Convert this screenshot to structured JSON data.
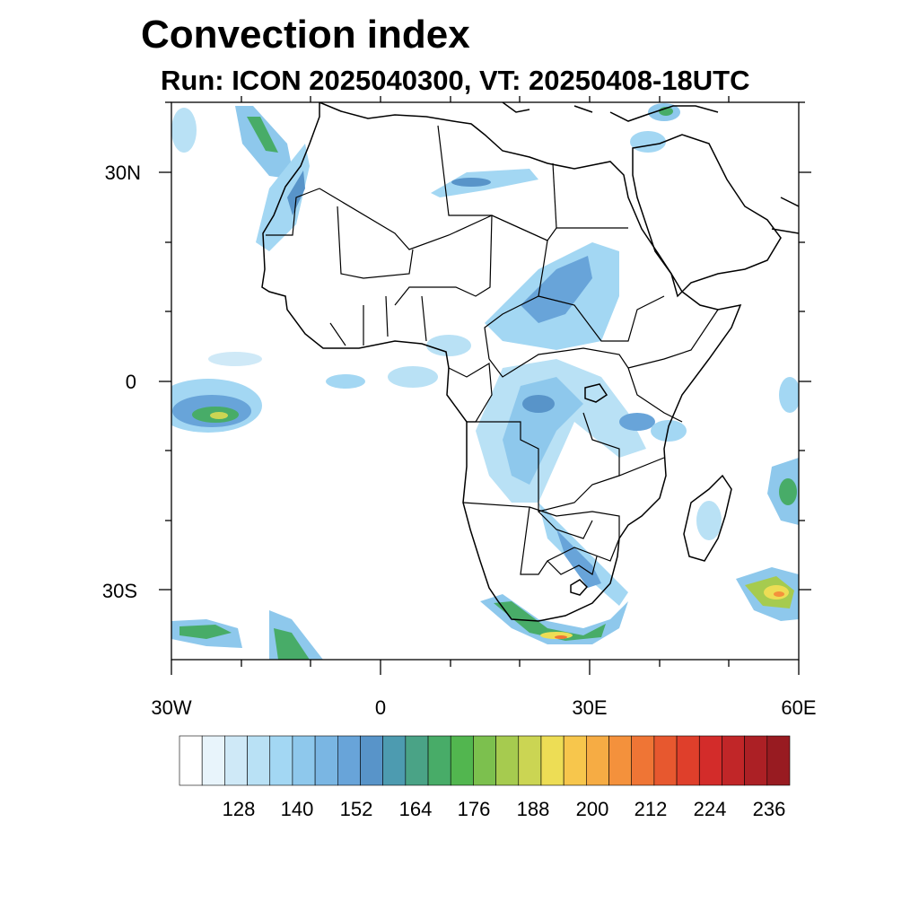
{
  "title": "Convection index",
  "subtitle": "Run: ICON 2025040300,  VT: 20250408-18UTC",
  "lat_labels": [
    "30N",
    "0",
    "30S"
  ],
  "lon_labels": [
    "30W",
    "0",
    "30E",
    "60E"
  ],
  "colorbar": {
    "labels": [
      "128",
      "140",
      "152",
      "164",
      "176",
      "188",
      "200",
      "212",
      "224",
      "236"
    ],
    "colors": [
      "#ffffff",
      "#e8f4fb",
      "#cfe9f7",
      "#b9e1f5",
      "#a3d7f3",
      "#8ec8ec",
      "#7ab6e3",
      "#68a4d9",
      "#5894c9",
      "#4d9bb0",
      "#4aa386",
      "#48ac68",
      "#52b64f",
      "#7cc04e",
      "#a6cb4f",
      "#cbd553",
      "#eddd55",
      "#f7c64c",
      "#f6ac44",
      "#f4913c",
      "#ef7535",
      "#e7582f",
      "#df3f2b",
      "#d32c2a",
      "#c12628",
      "#ac2025",
      "#981b21"
    ]
  },
  "map_extent": {
    "lon_min": -30,
    "lon_max": 60,
    "lat_min": -40,
    "lat_max": 40
  }
}
